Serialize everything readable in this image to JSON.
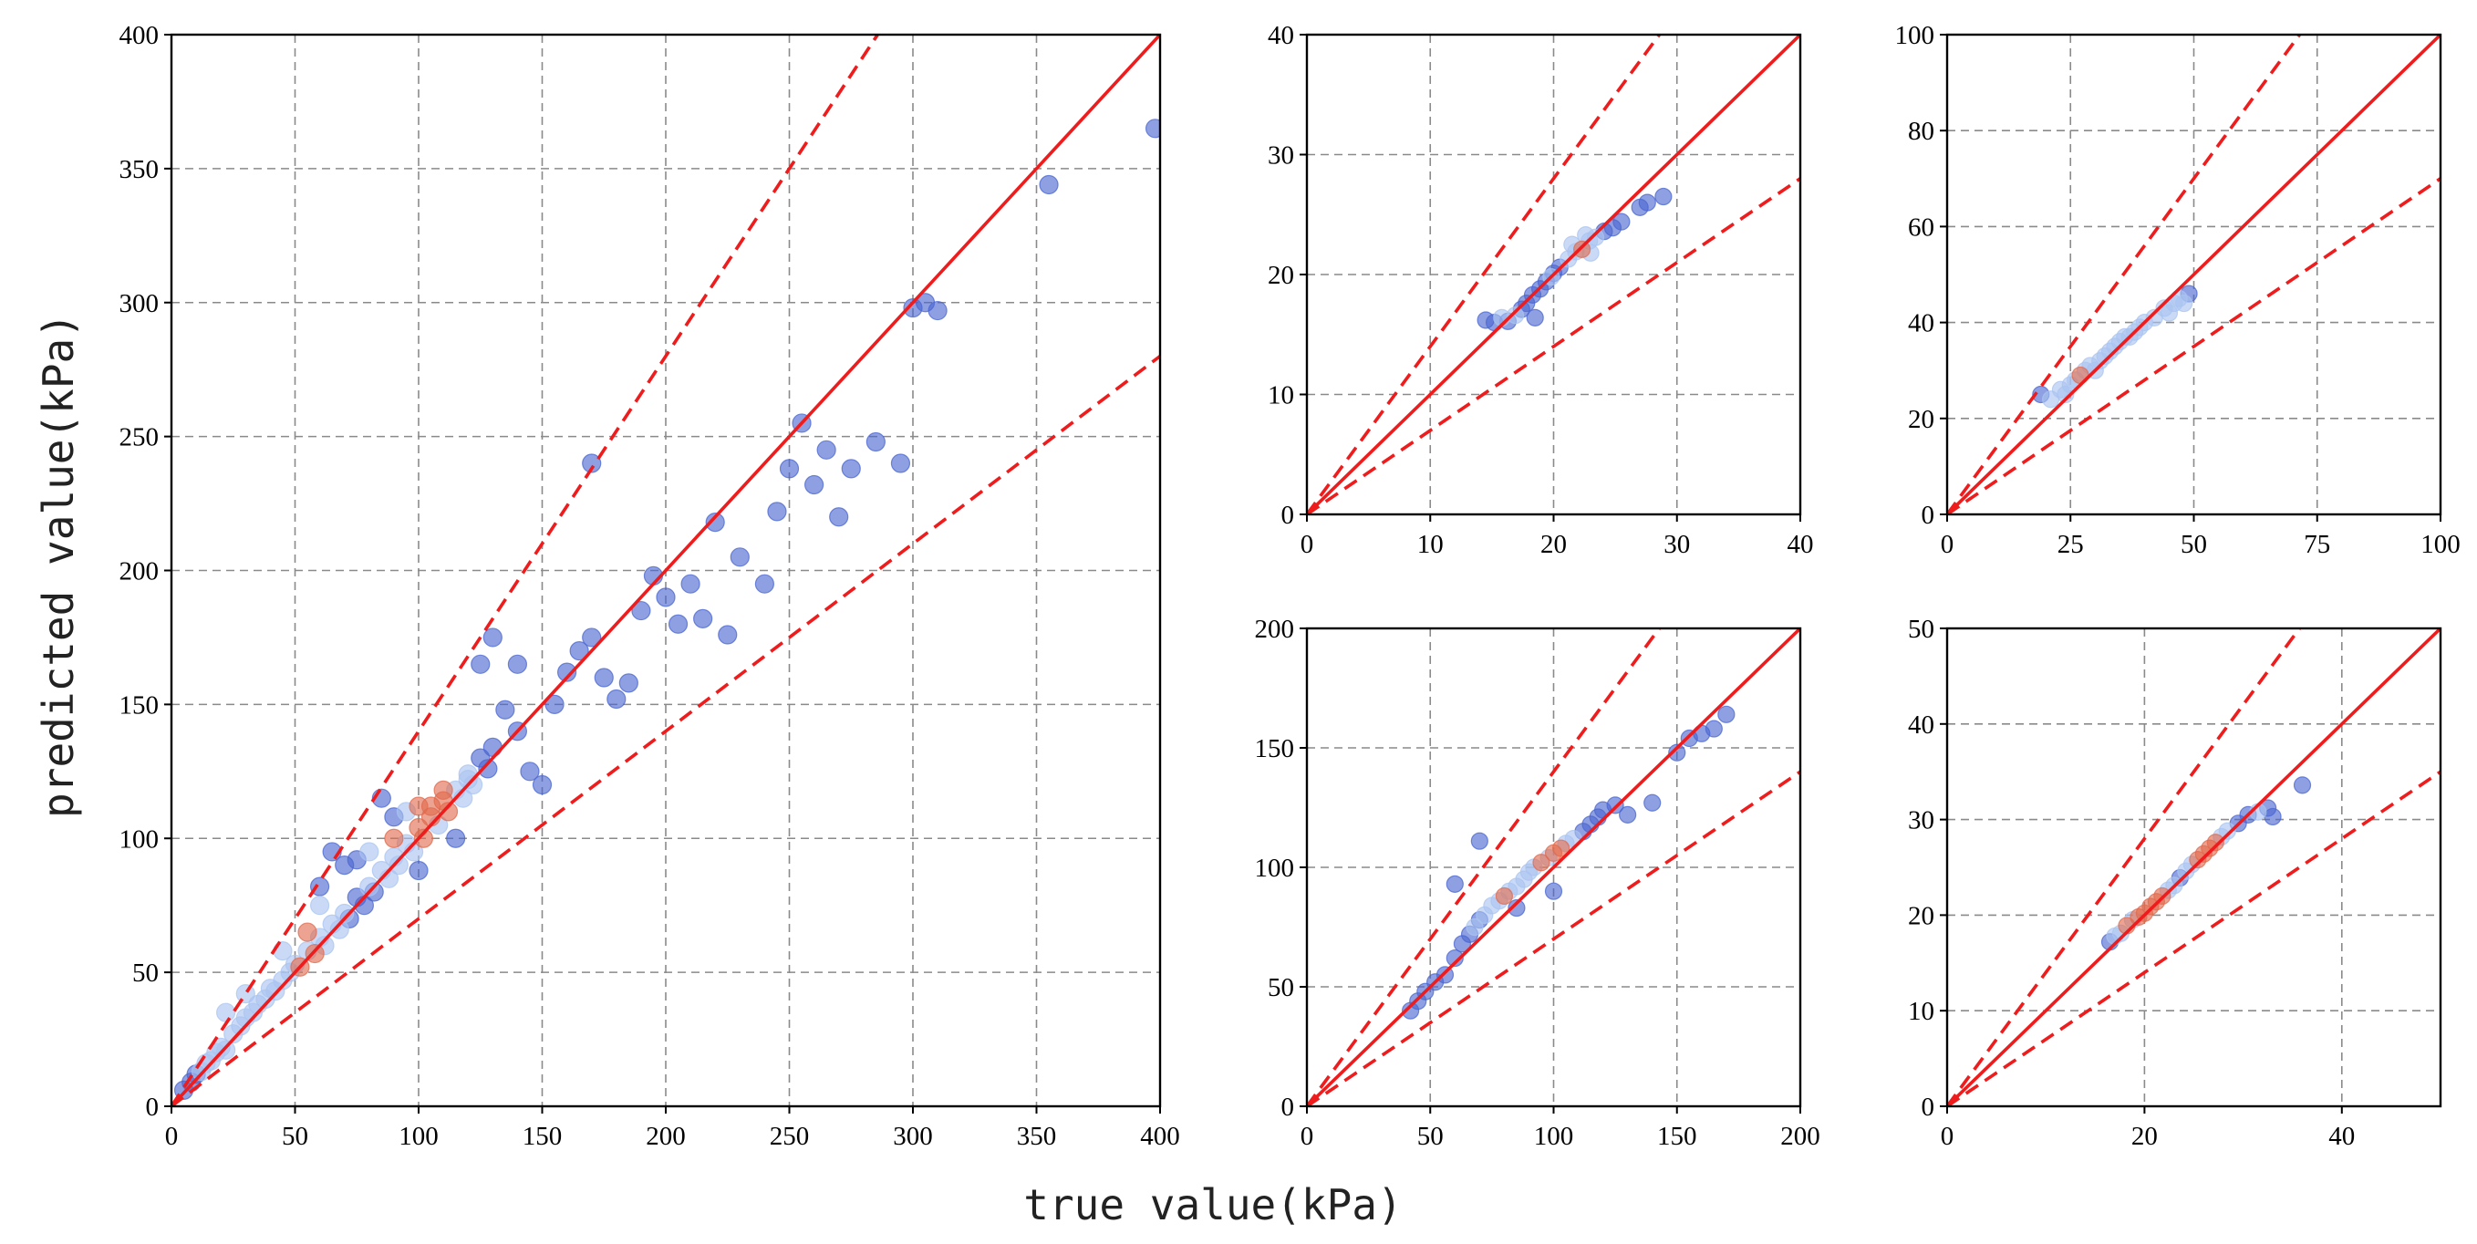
{
  "figure": {
    "xlabel": "true value(kPa)",
    "ylabel": "predicted value(kPa)"
  },
  "colors": {
    "points": "#4a66d0",
    "points_light": "#a9c4f0",
    "dense": "#e06a4e",
    "identity_line": "#ee1c1c",
    "bound_lines": "#ee1c1c",
    "grid": "#8a8a8a"
  },
  "chart_data": [
    {
      "id": "main",
      "type": "scatter",
      "title": "",
      "xlim": [
        0,
        400
      ],
      "ylim": [
        0,
        400
      ],
      "xticks": [
        0,
        50,
        100,
        150,
        200,
        250,
        300,
        350,
        400
      ],
      "yticks": [
        0,
        50,
        100,
        150,
        200,
        250,
        300,
        350,
        400
      ],
      "lines": [
        {
          "name": "y = x",
          "style": "solid",
          "slope": 1.0
        },
        {
          "name": "upper bound",
          "style": "dashed",
          "slope": 1.4
        },
        {
          "name": "lower bound",
          "style": "dashed",
          "slope": 0.7
        }
      ],
      "series": [
        {
          "name": "predictions",
          "x": [
            5,
            8,
            10,
            12,
            14,
            16,
            18,
            20,
            22,
            25,
            28,
            30,
            33,
            35,
            38,
            40,
            42,
            45,
            48,
            50,
            52,
            55,
            58,
            60,
            62,
            65,
            68,
            70,
            72,
            75,
            78,
            80,
            82,
            85,
            88,
            90,
            92,
            95,
            98,
            100,
            102,
            105,
            108,
            110,
            112,
            115,
            118,
            120,
            122,
            125,
            128,
            130,
            22,
            30,
            45,
            55,
            60,
            70,
            80,
            90,
            95,
            100,
            110,
            120,
            130,
            135,
            140,
            145,
            150,
            155,
            160,
            165,
            170,
            175,
            180,
            185,
            190,
            195,
            200,
            205,
            210,
            215,
            220,
            225,
            230,
            240,
            245,
            250,
            255,
            260,
            265,
            270,
            275,
            285,
            295,
            300,
            305,
            310,
            355,
            398,
            60,
            65,
            75,
            85,
            90,
            100,
            105,
            115,
            125,
            140,
            170
          ],
          "y": [
            6,
            9,
            12,
            13,
            16,
            17,
            20,
            22,
            21,
            27,
            30,
            33,
            35,
            38,
            40,
            44,
            43,
            47,
            50,
            53,
            52,
            58,
            57,
            63,
            60,
            68,
            66,
            72,
            70,
            78,
            75,
            82,
            80,
            88,
            85,
            93,
            90,
            98,
            95,
            104,
            100,
            108,
            105,
            114,
            110,
            118,
            115,
            124,
            120,
            130,
            126,
            134,
            35,
            42,
            58,
            65,
            75,
            90,
            95,
            108,
            110,
            112,
            118,
            122,
            175,
            148,
            140,
            125,
            120,
            150,
            162,
            170,
            175,
            160,
            152,
            158,
            185,
            198,
            190,
            180,
            195,
            182,
            218,
            176,
            205,
            195,
            222,
            238,
            255,
            232,
            245,
            220,
            238,
            248,
            240,
            298,
            300,
            297,
            344,
            365,
            82,
            95,
            92,
            115,
            100,
            88,
            112,
            100,
            165,
            165,
            240
          ]
        }
      ]
    },
    {
      "id": "panel-1",
      "type": "scatter",
      "title": "",
      "xlim": [
        0,
        40
      ],
      "ylim": [
        0,
        40
      ],
      "xticks": [
        0,
        10,
        20,
        30,
        40
      ],
      "yticks": [
        0,
        10,
        20,
        30,
        40
      ],
      "lines": [
        {
          "name": "y = x",
          "style": "solid",
          "slope": 1.0
        },
        {
          "name": "upper bound",
          "style": "dashed",
          "slope": 1.4
        },
        {
          "name": "lower bound",
          "style": "dashed",
          "slope": 0.7
        }
      ],
      "series": [
        {
          "name": "predictions",
          "x": [
            14.5,
            15.2,
            15.8,
            16.3,
            16.9,
            17.4,
            17.8,
            18.3,
            18.9,
            19.4,
            20.0,
            20.5,
            21.2,
            21.8,
            22.3,
            22.9,
            23.4,
            24.1,
            24.8,
            25.5,
            27.0,
            27.6,
            28.9,
            21.5,
            22.6,
            23.0,
            19.8,
            18.5
          ],
          "y": [
            16.2,
            16.0,
            16.4,
            16.1,
            16.6,
            17.1,
            17.6,
            18.3,
            18.8,
            19.4,
            20.1,
            20.6,
            21.3,
            21.9,
            22.1,
            22.8,
            23.1,
            23.6,
            23.9,
            24.4,
            25.6,
            26.0,
            26.5,
            22.5,
            23.3,
            21.8,
            19.8,
            16.4
          ]
        }
      ]
    },
    {
      "id": "panel-2",
      "type": "scatter",
      "title": "",
      "xlim": [
        0,
        100
      ],
      "ylim": [
        0,
        100
      ],
      "xticks": [
        0,
        25,
        50,
        75,
        100
      ],
      "yticks": [
        0,
        20,
        40,
        60,
        80,
        100
      ],
      "lines": [
        {
          "name": "y = x",
          "style": "solid",
          "slope": 1.0
        },
        {
          "name": "upper bound",
          "style": "dashed",
          "slope": 1.4
        },
        {
          "name": "lower bound",
          "style": "dashed",
          "slope": 0.7
        }
      ],
      "series": [
        {
          "name": "predictions",
          "x": [
            19,
            21,
            23,
            24,
            25,
            26,
            27,
            28,
            29,
            30,
            31,
            32,
            33,
            34,
            35,
            36,
            37,
            38,
            39,
            40,
            42,
            44,
            45,
            46,
            47,
            48,
            49
          ],
          "y": [
            25,
            24,
            26,
            25,
            27,
            28,
            29,
            30,
            31,
            30,
            32,
            33,
            34,
            35,
            36,
            37,
            37,
            38,
            39,
            40,
            41,
            43,
            42,
            44,
            45,
            44,
            46
          ]
        }
      ]
    },
    {
      "id": "panel-3",
      "type": "scatter",
      "title": "",
      "xlim": [
        0,
        200
      ],
      "ylim": [
        0,
        200
      ],
      "xticks": [
        0,
        50,
        100,
        150,
        200
      ],
      "yticks": [
        0,
        50,
        100,
        150,
        200
      ],
      "lines": [
        {
          "name": "y = x",
          "style": "solid",
          "slope": 1.0
        },
        {
          "name": "upper bound",
          "style": "dashed",
          "slope": 1.4
        },
        {
          "name": "lower bound",
          "style": "dashed",
          "slope": 0.7
        }
      ],
      "series": [
        {
          "name": "predictions",
          "x": [
            42,
            45,
            48,
            52,
            56,
            60,
            63,
            66,
            68,
            70,
            72,
            75,
            78,
            80,
            82,
            85,
            88,
            90,
            92,
            95,
            98,
            100,
            103,
            105,
            108,
            112,
            115,
            118,
            120,
            125,
            130,
            140,
            150,
            155,
            160,
            165,
            170,
            70,
            60,
            85,
            100
          ],
          "y": [
            40,
            44,
            48,
            52,
            55,
            62,
            68,
            72,
            75,
            78,
            80,
            84,
            86,
            88,
            90,
            92,
            95,
            98,
            100,
            102,
            104,
            106,
            108,
            110,
            112,
            115,
            118,
            121,
            124,
            126,
            122,
            127,
            148,
            154,
            156,
            158,
            164,
            111,
            93,
            83,
            90
          ]
        }
      ]
    },
    {
      "id": "panel-4",
      "type": "scatter",
      "title": "",
      "xlim": [
        0,
        50
      ],
      "ylim": [
        0,
        50
      ],
      "xticks": [
        0,
        20,
        40
      ],
      "yticks": [
        0,
        10,
        20,
        30,
        40,
        50
      ],
      "lines": [
        {
          "name": "y = x",
          "style": "solid",
          "slope": 1.0
        },
        {
          "name": "upper bound",
          "style": "dashed",
          "slope": 1.4
        },
        {
          "name": "lower bound",
          "style": "dashed",
          "slope": 0.7
        }
      ],
      "series": [
        {
          "name": "predictions",
          "x": [
            16.5,
            17.0,
            17.6,
            18.2,
            18.8,
            19.4,
            20.0,
            20.6,
            21.2,
            21.8,
            22.4,
            23.0,
            23.6,
            24.2,
            24.8,
            25.4,
            26.0,
            26.6,
            27.2,
            27.8,
            28.4,
            29.5,
            30.5,
            31.5,
            32.5,
            33.0,
            36.0
          ],
          "y": [
            17.2,
            17.8,
            18.1,
            18.9,
            19.5,
            19.8,
            20.2,
            20.9,
            21.4,
            22.0,
            22.6,
            23.1,
            23.9,
            24.6,
            25.3,
            25.8,
            26.4,
            27.0,
            27.6,
            28.2,
            28.8,
            29.6,
            30.5,
            30.8,
            31.2,
            30.3,
            33.6
          ]
        }
      ]
    }
  ]
}
